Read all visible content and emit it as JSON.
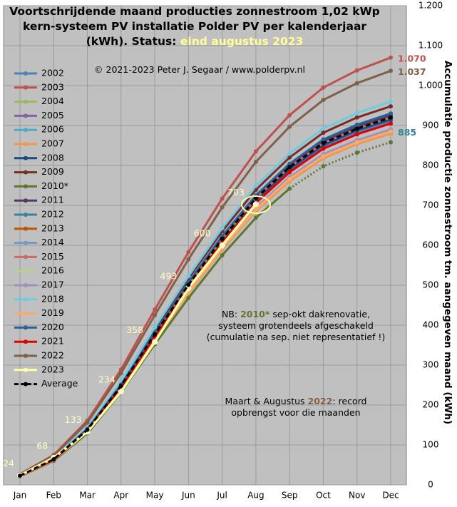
{
  "chart_data": {
    "type": "line",
    "title": "Voortschrijdende maand producties zonnestroom 1,02 kWp kern-systeem PV installatie Polder PV per kalenderjaar (kWh). Status:",
    "status": "eind augustus 2023",
    "subtitle": "© 2021-2023 Peter J. Segaar / www.polderpv.nl",
    "y_label": "Accumulatie productie zonnestroom tm. aangegeven maand (kWh)",
    "note1": [
      "NB: ",
      "2010*",
      " sep-okt dakrenovatie,",
      "systeem grotendeels afgeschakeld",
      "(cumulatie na sep. niet representatief !)"
    ],
    "note2": [
      "Maart & Augustus ",
      "2022",
      ": record",
      "opbrengst voor die maanden"
    ],
    "categories": [
      "Jan",
      "Feb",
      "Mar",
      "Apr",
      "May",
      "Jun",
      "Jul",
      "Aug",
      "Sep",
      "Oct",
      "Nov",
      "Dec"
    ],
    "ylim": [
      0,
      1200
    ],
    "yticks": [
      0,
      100,
      200,
      300,
      400,
      500,
      600,
      700,
      800,
      900,
      {
        "value": 1000,
        "label": "1.000"
      },
      {
        "value": 1100,
        "label": "1.100"
      },
      {
        "value": 1200,
        "label": "1.200"
      }
    ],
    "grid": true,
    "legend": "upper left",
    "series": [
      {
        "name": "2002",
        "color": "#4f81bd",
        "values": [
          23,
          64,
          137,
          246,
          373,
          496,
          610,
          710,
          787,
          846,
          883,
          910
        ]
      },
      {
        "name": "2003",
        "color": "#c0504d",
        "values": [
          27,
          75,
          161,
          289,
          439,
          583,
          717,
          835,
          926,
          995,
          1038,
          1070
        ],
        "end_label": "1.070"
      },
      {
        "name": "2004",
        "color": "#9bbb59",
        "values": [
          22,
          62,
          134,
          240,
          365,
          485,
          596,
          694,
          770,
          828,
          863,
          890
        ]
      },
      {
        "name": "2005",
        "color": "#8064a2",
        "values": [
          22,
          62,
          132,
          238,
          361,
          480,
          590,
          686,
          761,
          818,
          854,
          880
        ]
      },
      {
        "name": "2006",
        "color": "#4bacc6",
        "values": [
          23,
          65,
          140,
          251,
          381,
          507,
          623,
          725,
          804,
          865,
          902,
          930
        ]
      },
      {
        "name": "2007",
        "color": "#f79646",
        "values": [
          22,
          62,
          132,
          238,
          361,
          480,
          590,
          686,
          761,
          818,
          854,
          880
        ]
      },
      {
        "name": "2008",
        "color": "#1f497d",
        "values": [
          23,
          64,
          137,
          247,
          375,
          499,
          613,
          714,
          791,
          851,
          888,
          915
        ]
      },
      {
        "name": "2009",
        "color": "#772c2a",
        "values": [
          24,
          66,
          142,
          256,
          389,
          517,
          635,
          739,
          820,
          882,
          920,
          948
        ]
      },
      {
        "name": "2010*",
        "color": "#5f7530",
        "values": [
          21,
          60,
          129,
          232,
          352,
          468,
          575,
          669,
          742,
          798,
          832,
          858
        ],
        "dotted_from": "Sep"
      },
      {
        "name": "2011",
        "color": "#4d3b62",
        "values": [
          23,
          65,
          139,
          250,
          379,
          504,
          620,
          722,
          800,
          860,
          897,
          925
        ]
      },
      {
        "name": "2012",
        "color": "#31859c",
        "values": [
          22,
          62,
          133,
          239,
          363,
          482,
          593,
          690,
          766,
          823,
          858,
          885
        ],
        "end_label": "885"
      },
      {
        "name": "2013",
        "color": "#b65708",
        "values": [
          22,
          62,
          133,
          239,
          363,
          482,
          593,
          690,
          766,
          823,
          858,
          885
        ]
      },
      {
        "name": "2014",
        "color": "#729aca",
        "values": [
          22,
          62,
          134,
          240,
          365,
          485,
          596,
          694,
          770,
          828,
          863,
          890
        ]
      },
      {
        "name": "2015",
        "color": "#cd6a67",
        "values": [
          23,
          64,
          138,
          248,
          377,
          501,
          616,
          718,
          796,
          856,
          892,
          920
        ]
      },
      {
        "name": "2016",
        "color": "#b7d08c",
        "values": [
          22,
          62,
          133,
          239,
          363,
          482,
          593,
          690,
          766,
          823,
          858,
          885
        ]
      },
      {
        "name": "2017",
        "color": "#a08fbf",
        "values": [
          22,
          62,
          134,
          240,
          365,
          485,
          596,
          694,
          770,
          828,
          863,
          890
        ]
      },
      {
        "name": "2018",
        "color": "#6fcce0",
        "values": [
          24,
          67,
          144,
          259,
          394,
          523,
          643,
          749,
          830,
          893,
          931,
          960
        ]
      },
      {
        "name": "2019",
        "color": "#f9ab6b",
        "values": [
          22,
          62,
          133,
          239,
          363,
          482,
          593,
          690,
          766,
          823,
          858,
          885
        ]
      },
      {
        "name": "2020",
        "color": "#2f5f98",
        "values": [
          23,
          65,
          140,
          251,
          381,
          507,
          623,
          725,
          804,
          865,
          902,
          930
        ]
      },
      {
        "name": "2021",
        "color": "#e00000",
        "values": [
          23,
          63,
          136,
          244,
          371,
          493,
          606,
          706,
          783,
          842,
          878,
          905
        ]
      },
      {
        "name": "2022",
        "color": "#7f6048",
        "values": [
          26,
          73,
          156,
          280,
          425,
          565,
          695,
          809,
          897,
          964,
          1006,
          1037
        ],
        "end_label": "1.037"
      },
      {
        "name": "2023",
        "color": "#ffffa8",
        "values": [
          24,
          68,
          133,
          234,
          358,
          493,
          600,
          703,
          null,
          null,
          null,
          null
        ],
        "labels": true
      },
      {
        "name": "Average",
        "color": "#000000",
        "dashed": true,
        "values": [
          23,
          64,
          138,
          248,
          377,
          501,
          616,
          718,
          796,
          856,
          892,
          920
        ]
      }
    ]
  }
}
